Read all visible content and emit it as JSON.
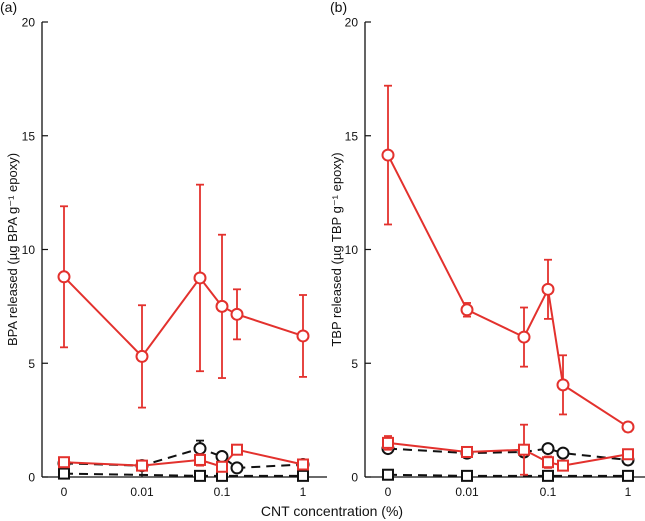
{
  "xlabel": "CNT concentration (%)",
  "colors": {
    "red": "#e3312d",
    "black": "#111111",
    "axis": "#111111"
  },
  "chart_data": [
    {
      "type": "line",
      "panel_label": "(a)",
      "ylabel": "BPA released (µg BPA g⁻¹ epoxy)",
      "ylim": [
        0,
        20
      ],
      "yticks": [
        0,
        5,
        10,
        15,
        20
      ],
      "x_ticks": [
        {
          "value": 0,
          "label": "0"
        },
        {
          "value": 0.01,
          "label": "0.01"
        },
        {
          "value": 0.1,
          "label": "0.1"
        },
        {
          "value": 1,
          "label": "1"
        }
      ],
      "series": [
        {
          "color": "red",
          "style": "solid",
          "marker": "circle",
          "points": [
            {
              "x": 0,
              "y": 8.8,
              "err": 3.1
            },
            {
              "x": 0.01,
              "y": 5.3,
              "err": 2.25
            },
            {
              "x": 0.05,
              "y": 8.75,
              "err": 4.1
            },
            {
              "x": 0.1,
              "y": 7.5,
              "err": 3.15
            },
            {
              "x": 0.15,
              "y": 7.15,
              "err": 1.1
            },
            {
              "x": 1,
              "y": 6.2,
              "err": 1.8
            }
          ]
        },
        {
          "color": "black",
          "style": "dashed",
          "marker": "circle",
          "points": [
            {
              "x": 0,
              "y": 0.6,
              "err": 0
            },
            {
              "x": 0.01,
              "y": 0.5,
              "err": 0
            },
            {
              "x": 0.05,
              "y": 1.25,
              "err": 0.35
            },
            {
              "x": 0.1,
              "y": 0.9,
              "err": 0.1
            },
            {
              "x": 0.15,
              "y": 0.4,
              "err": 0
            },
            {
              "x": 1,
              "y": 0.55,
              "err": 0
            }
          ]
        },
        {
          "color": "red",
          "style": "solid",
          "marker": "square",
          "points": [
            {
              "x": 0,
              "y": 0.65,
              "err": 0.15
            },
            {
              "x": 0.01,
              "y": 0.5,
              "err": 0.1
            },
            {
              "x": 0.05,
              "y": 0.75,
              "err": 0.25
            },
            {
              "x": 0.1,
              "y": 0.45,
              "err": 0.1
            },
            {
              "x": 0.15,
              "y": 1.2,
              "err": 0.1
            },
            {
              "x": 1,
              "y": 0.55,
              "err": 0.05
            }
          ]
        },
        {
          "color": "black",
          "style": "dashed",
          "marker": "square",
          "points": [
            {
              "x": 0,
              "y": 0.15,
              "err": 0
            },
            {
              "x": 0.05,
              "y": 0.05,
              "err": 0
            },
            {
              "x": 0.1,
              "y": 0.05,
              "err": 0
            },
            {
              "x": 1,
              "y": 0.05,
              "err": 0
            }
          ]
        }
      ]
    },
    {
      "type": "line",
      "panel_label": "(b)",
      "ylabel": "TBP released (µg TBP g⁻¹ epoxy)",
      "ylim": [
        0,
        20
      ],
      "yticks": [
        0,
        5,
        10,
        15,
        20
      ],
      "x_ticks": [
        {
          "value": 0,
          "label": "0"
        },
        {
          "value": 0.01,
          "label": "0.01"
        },
        {
          "value": 0.1,
          "label": "0.1"
        },
        {
          "value": 1,
          "label": "1"
        }
      ],
      "series": [
        {
          "color": "red",
          "style": "solid",
          "marker": "circle",
          "points": [
            {
              "x": 0,
              "y": 14.15,
              "err": 3.05
            },
            {
              "x": 0.01,
              "y": 7.35,
              "err": 0.3
            },
            {
              "x": 0.05,
              "y": 6.15,
              "err": 1.3
            },
            {
              "x": 0.1,
              "y": 8.25,
              "err": 1.3
            },
            {
              "x": 0.15,
              "y": 4.05,
              "err": 1.3
            },
            {
              "x": 1,
              "y": 2.2,
              "err": 0.2
            }
          ]
        },
        {
          "color": "black",
          "style": "dashed",
          "marker": "circle",
          "points": [
            {
              "x": 0,
              "y": 1.25,
              "err": 0
            },
            {
              "x": 0.01,
              "y": 1.05,
              "err": 0
            },
            {
              "x": 0.05,
              "y": 1.1,
              "err": 0
            },
            {
              "x": 0.1,
              "y": 1.25,
              "err": 0
            },
            {
              "x": 0.15,
              "y": 1.05,
              "err": 0
            },
            {
              "x": 1,
              "y": 0.75,
              "err": 0
            }
          ]
        },
        {
          "color": "red",
          "style": "solid",
          "marker": "square",
          "points": [
            {
              "x": 0,
              "y": 1.5,
              "err": 0.3
            },
            {
              "x": 0.01,
              "y": 1.1,
              "err": 0.15
            },
            {
              "x": 0.05,
              "y": 1.2,
              "err": 1.1
            },
            {
              "x": 0.1,
              "y": 0.65,
              "err": 0.25
            },
            {
              "x": 0.15,
              "y": 0.5,
              "err": 0.1
            },
            {
              "x": 1,
              "y": 1.0,
              "err": 0.1
            }
          ]
        },
        {
          "color": "black",
          "style": "dashed",
          "marker": "square",
          "points": [
            {
              "x": 0,
              "y": 0.1,
              "err": 0
            },
            {
              "x": 0.01,
              "y": 0.05,
              "err": 0
            },
            {
              "x": 0.1,
              "y": 0.05,
              "err": 0
            },
            {
              "x": 1,
              "y": 0.05,
              "err": 0
            }
          ]
        }
      ]
    }
  ]
}
